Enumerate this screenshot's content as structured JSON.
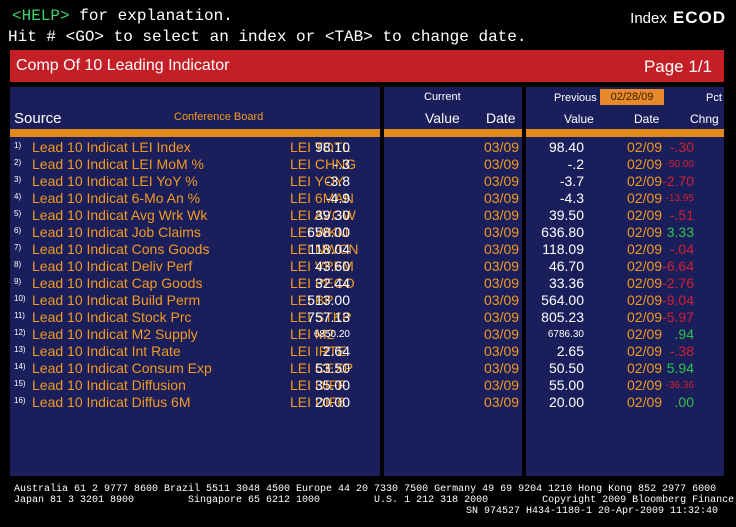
{
  "header": {
    "line1_help": "<HELP>",
    "line1_rest": " for explanation.",
    "line2": "Hit # <GO> to select an index or <TAB> to change date.",
    "index_label": "Index",
    "index_code": "ECOD"
  },
  "titlebar": {
    "title": "Comp Of 10 Leading Indicator",
    "page": "Page   1/1"
  },
  "columns": {
    "source": "Source",
    "source_name": "Conference Board",
    "current": "Current",
    "value": "Value",
    "date": "Date",
    "previous": "Previous",
    "previous_date": "02/28/09",
    "pct": "Pct",
    "chng": "Chng"
  },
  "rows": [
    {
      "n": "1)",
      "name": "Lead 10 Indicat LEI Index",
      "ticker": "LEI TOTL",
      "cur": "98.10",
      "cdate": "03/09",
      "prev": "98.40",
      "pdate": "02/09",
      "chg": "-.30",
      "sign": "neg",
      "small": false
    },
    {
      "n": "2)",
      "name": "Lead 10 Indicat LEI MoM %",
      "ticker": "LEI CHNG",
      "cur": "-.3",
      "cdate": "03/09",
      "prev": "-.2",
      "pdate": "02/09",
      "chg": "-50.00",
      "sign": "neg",
      "small": true
    },
    {
      "n": "3)",
      "name": "Lead 10 Indicat LEI YoY %",
      "ticker": "LEI YOY",
      "cur": "-3.8",
      "cdate": "03/09",
      "prev": "-3.7",
      "pdate": "02/09",
      "chg": "-2.70",
      "sign": "neg",
      "small": false
    },
    {
      "n": "4)",
      "name": "Lead 10 Indicat 6-Mo An %",
      "ticker": "LEI 6MAN",
      "cur": "-4.9",
      "cdate": "03/09",
      "prev": "-4.3",
      "pdate": "02/09",
      "chg": "-13.95",
      "sign": "neg",
      "small": true
    },
    {
      "n": "5)",
      "name": "Lead 10 Indicat Avg Wrk Wk",
      "ticker": "LEI AVGW",
      "cur": "39.30",
      "cdate": "03/09",
      "prev": "39.50",
      "pdate": "02/09",
      "chg": "-.51",
      "sign": "neg",
      "small": false
    },
    {
      "n": "6)",
      "name": "Lead 10 Indicat Job Claims",
      "ticker": "LEI WKIJ",
      "cur": "658.00",
      "cdate": "03/09",
      "prev": "636.80",
      "pdate": "02/09",
      "chg": "3.33",
      "sign": "pos",
      "small": false
    },
    {
      "n": "7)",
      "name": "Lead 10 Indicat Cons Goods",
      "ticker": "LEI NWCN",
      "cur": "118.04",
      "cdate": "03/09",
      "prev": "118.09",
      "pdate": "02/09",
      "chg": "-.04",
      "sign": "neg",
      "small": false
    },
    {
      "n": "8)",
      "name": "Lead 10 Indicat Deliv Perf",
      "ticker": "LEI VPFM",
      "cur": "43.60",
      "cdate": "03/09",
      "prev": "46.70",
      "pdate": "02/09",
      "chg": "-6.64",
      "sign": "neg",
      "small": false
    },
    {
      "n": "9)",
      "name": "Lead 10 Indicat Cap Goods",
      "ticker": "LEI PECO",
      "cur": "32.44",
      "cdate": "03/09",
      "prev": "33.36",
      "pdate": "02/09",
      "chg": "-2.76",
      "sign": "neg",
      "small": false
    },
    {
      "n": "10)",
      "name": "Lead 10 Indicat Build Perm",
      "ticker": "LEI BP",
      "cur": "513.00",
      "cdate": "03/09",
      "prev": "564.00",
      "pdate": "02/09",
      "chg": "-9.04",
      "sign": "neg",
      "small": false
    },
    {
      "n": "11)",
      "name": "Lead 10 Indicat Stock Prc",
      "ticker": "LEI STKP",
      "cur": "757.13",
      "cdate": "03/09",
      "prev": "805.23",
      "pdate": "02/09",
      "chg": "-5.97",
      "sign": "neg",
      "small": false
    },
    {
      "n": "12)",
      "name": "Lead 10 Indicat M2 Supply",
      "ticker": "LEI M2",
      "cur": "6850.20",
      "cdate": "03/09",
      "prev": "6786.30",
      "pdate": "02/09",
      "chg": ".94",
      "sign": "pos",
      "small": false,
      "smallval": true
    },
    {
      "n": "13)",
      "name": "Lead 10 Indicat Int Rate",
      "ticker": "LEI IRTE",
      "cur": "2.64",
      "cdate": "03/09",
      "prev": "2.65",
      "pdate": "02/09",
      "chg": "-.38",
      "sign": "neg",
      "small": false
    },
    {
      "n": "14)",
      "name": "Lead 10 Indicat Consum Exp",
      "ticker": "LEI CEXP",
      "cur": "53.50",
      "cdate": "03/09",
      "prev": "50.50",
      "pdate": "02/09",
      "chg": "5.94",
      "sign": "pos",
      "small": false
    },
    {
      "n": "15)",
      "name": "Lead 10 Indicat Diffusion",
      "ticker": "LEI DIFF",
      "cur": "35.00",
      "cdate": "03/09",
      "prev": "55.00",
      "pdate": "02/09",
      "chg": "-36.36",
      "sign": "neg",
      "small": true
    },
    {
      "n": "16)",
      "name": "Lead 10 Indicat Diffus 6M",
      "ticker": "LEI DIF6",
      "cur": "20.00",
      "cdate": "03/09",
      "prev": "20.00",
      "pdate": "02/09",
      "chg": ".00",
      "sign": "pos",
      "small": false
    }
  ],
  "footer": {
    "line1": "Australia 61 2 9777 8600 Brazil 5511 3048 4500 Europe 44 20 7330 7500 Germany 49 69 9204 1210 Hong Kong 852 2977 6000",
    "line2": "Japan 81 3 3201 8900         Singapore 65 6212 1000         U.S. 1 212 318 2000         Copyright 2009 Bloomberg Finance L.P.",
    "line3": "SN 974527 H434-1180-1 20-Apr-2009 11:32:40"
  },
  "colors": {
    "title_red": "#c41e27",
    "panel_blue": "#1a1f5c",
    "orange": "#f39a1e",
    "neg": "#d02030",
    "pos": "#2fc24a"
  }
}
